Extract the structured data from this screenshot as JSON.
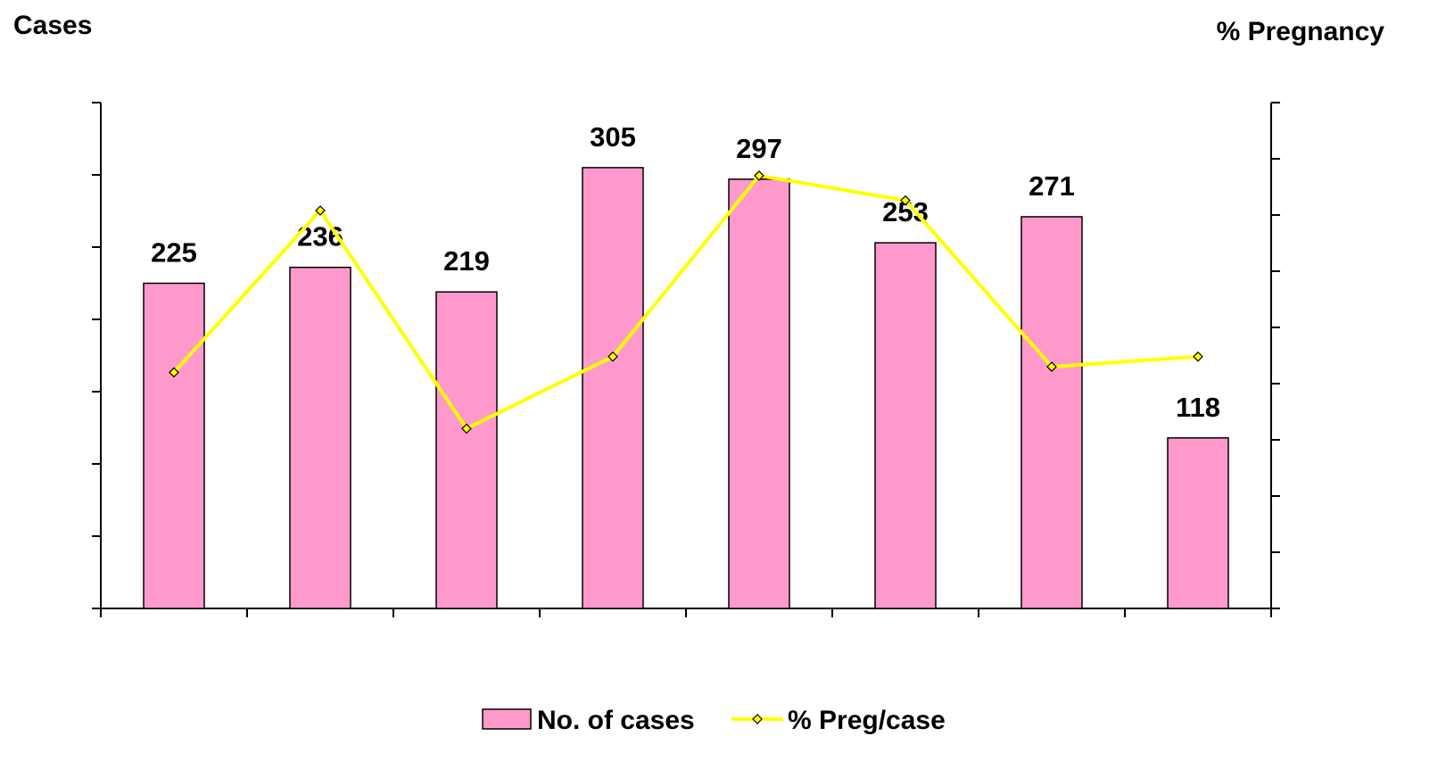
{
  "chart_data": {
    "type": "bar_line",
    "y_label": "Cases",
    "y2_label": "% Pregnancy",
    "categories": [
      null,
      null,
      null,
      null,
      null,
      null,
      null,
      null
    ],
    "series": [
      {
        "name": "No. of cases",
        "type": "bar",
        "color": "#ff99cc",
        "values": [
          225,
          236,
          219,
          305,
          297,
          253,
          271,
          118
        ]
      },
      {
        "name": "% Preg/case",
        "type": "line",
        "axis": "y2",
        "color": "#ffff00",
        "values": [
          21,
          35.4,
          16,
          22.4,
          38.5,
          36.3,
          21.5,
          22.4
        ]
      }
    ],
    "ylim": [
      0,
      350
    ],
    "yticks": [
      0,
      50,
      100,
      150,
      200,
      250,
      300,
      350
    ],
    "y2lim": [
      0,
      45
    ],
    "y2ticks": [
      0,
      5,
      10,
      15,
      20,
      25,
      30,
      35,
      40,
      45
    ],
    "legend": "bottom"
  }
}
